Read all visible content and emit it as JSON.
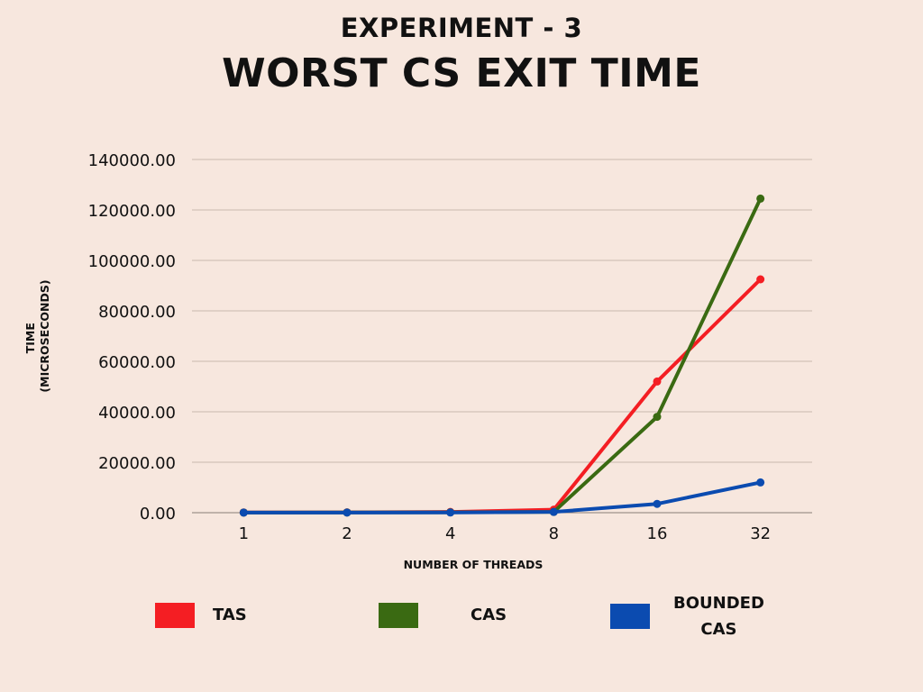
{
  "header": {
    "subtitle": "EXPERIMENT - 3",
    "title": "WORST CS EXIT TIME"
  },
  "chart_data": {
    "type": "line",
    "categories": [
      "1",
      "2",
      "4",
      "8",
      "16",
      "32"
    ],
    "xlabel": "NUMBER OF THREADS",
    "ylabel_line1": "TIME",
    "ylabel_line2": "(MICROSECONDS)",
    "ylim": [
      0,
      140000
    ],
    "yticks": [
      0,
      20000,
      40000,
      60000,
      80000,
      100000,
      120000,
      140000
    ],
    "ytick_labels": [
      "0.00",
      "20000.00",
      "40000.00",
      "60000.00",
      "80000.00",
      "100000.00",
      "120000.00",
      "140000.00"
    ],
    "grid": true,
    "legend_position": "bottom",
    "series": [
      {
        "name": "TAS",
        "color": "#f41e23",
        "values": [
          100,
          150,
          300,
          1200,
          52000,
          92500
        ]
      },
      {
        "name": "CAS",
        "color": "#3a6a12",
        "values": [
          50,
          80,
          150,
          300,
          38000,
          124500
        ]
      },
      {
        "name": "BOUNDED\nCAS",
        "color": "#0b4bb0",
        "values": [
          30,
          50,
          80,
          300,
          3500,
          12000
        ]
      }
    ]
  }
}
